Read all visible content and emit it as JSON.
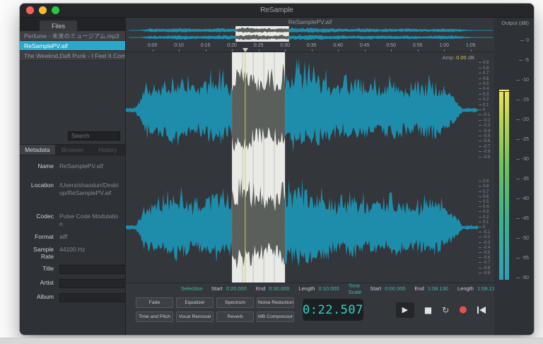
{
  "window": {
    "title": "ReSample"
  },
  "traffic_lights": [
    "#ff5f57",
    "#febc2e",
    "#28c840"
  ],
  "sidebar": {
    "files_tab": "Files",
    "files": [
      {
        "label": "Perfume - 未来のミュージアム.mp3",
        "selected": false
      },
      {
        "label": "ReSamplePV.aif",
        "selected": true
      },
      {
        "label": "The Weeknd,Daft Punk - I Feel It Coming.mp3",
        "selected": false
      }
    ],
    "search_placeholder": "Search",
    "tabs": [
      "Metadata",
      "Browser",
      "History"
    ],
    "active_tab": "Metadata",
    "metadata": {
      "name_label": "Name",
      "name": "ReSamplePV.aif",
      "location_label": "Location",
      "location": "/Users/shaodun/Desktop/ReSamplePV.aif",
      "codec_label": "Codec",
      "codec": "Pulse Code Modulation",
      "format_label": "Format",
      "format": "aiff",
      "sample_rate_label": "Sample Rate",
      "sample_rate": "44100 Hz",
      "title_label": "Title",
      "artist_label": "Artist",
      "album_label": "Album"
    }
  },
  "editor": {
    "doc_title": "ReSamplePV.aif",
    "output_label": "Output (dB)",
    "amp_label": "Amp:",
    "amp_value": "0.00",
    "amp_unit": "dB",
    "ruler_ticks": [
      "0:05",
      "0:10",
      "0:15",
      "0:20",
      "0:25",
      "0:30",
      "0:35",
      "0:40",
      "0:45",
      "0:50",
      "0:55",
      "1:00",
      "1:05"
    ],
    "amplitude_ticks": [
      "0.9",
      "0.8",
      "0.7",
      "0.6",
      "0.5",
      "0.4",
      "0.3",
      "0.2",
      "0.1",
      "0",
      "-0.1",
      "-0.2",
      "-0.3",
      "-0.4",
      "-0.5",
      "-0.6",
      "-0.7",
      "-0.8",
      "-0.9"
    ],
    "meter_ticks": [
      "0",
      "-5",
      "-10",
      "-15",
      "-20",
      "-25",
      "-30",
      "-35",
      "-40",
      "-45",
      "-50",
      "-55",
      "-60"
    ],
    "selection_start_sec": 20.0,
    "selection_end_sec": 30.0,
    "playhead_sec": 22.507,
    "visible_duration_sec": 66.5,
    "total_duration_sec": 68.13
  },
  "bottom": {
    "selection_label": "Selection",
    "start_label": "Start",
    "selection_start": "0:20.000",
    "end_label": "End",
    "selection_end": "0:30.000",
    "length_label": "Length",
    "selection_length": "0:10.000",
    "timescale_label": "Time Scale",
    "ts_start_label": "Start",
    "timescale_start": "0:00.000",
    "ts_end_label": "End",
    "timescale_end": "1:08.130",
    "ts_length_label": "Length",
    "timescale_length": "1:08.130",
    "effects": [
      "Fade",
      "Equalizer",
      "Spectrum",
      "Noise Reduction",
      "Time and Pitch",
      "Vocal Removal",
      "Reverb",
      "MB Compressor"
    ],
    "time_display": "0:22.507",
    "transport": [
      {
        "name": "play",
        "glyph": "▶"
      },
      {
        "name": "stop",
        "glyph": "■"
      },
      {
        "name": "loop",
        "glyph": "↻"
      },
      {
        "name": "record",
        "glyph": "●"
      },
      {
        "name": "skip-back",
        "glyph": ""
      },
      {
        "name": "skip-forward",
        "glyph": ""
      }
    ]
  },
  "colors": {
    "accent": "#2ba7c9",
    "waveform": "#1e8dab",
    "waveform_selected": "#5a5f5b",
    "selection_fill": "#e9eae6",
    "playhead": "#d4ce4a",
    "timer": "#30d4c4",
    "record": "#e0524e",
    "amp_value": "#d9c44a"
  }
}
